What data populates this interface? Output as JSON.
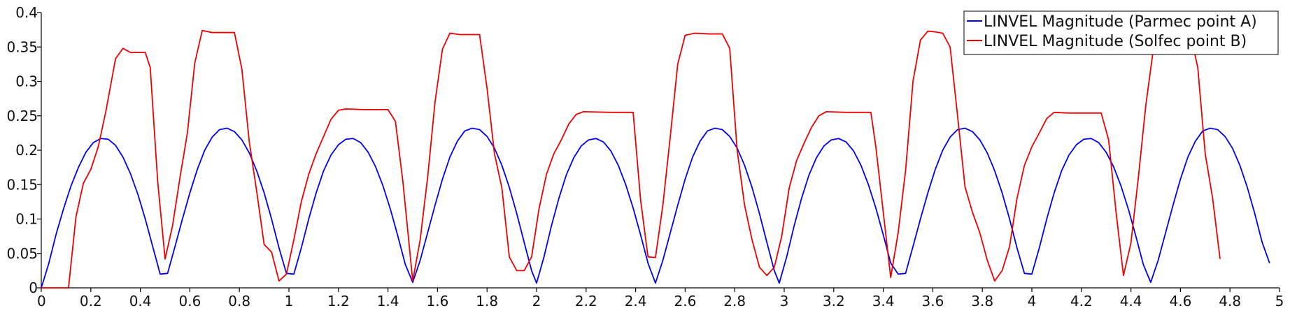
{
  "chart_data": {
    "type": "line",
    "xlabel": "",
    "ylabel": "",
    "xlim": [
      0,
      5
    ],
    "ylim": [
      0,
      0.4
    ],
    "xticks": [
      "0",
      "0.2",
      "0.4",
      "0.6",
      "0.8",
      "1",
      "1.2",
      "1.4",
      "1.6",
      "1.8",
      "2",
      "2.2",
      "2.4",
      "2.6",
      "2.8",
      "3",
      "3.2",
      "3.4",
      "3.6",
      "3.8",
      "4",
      "4.2",
      "4.4",
      "4.6",
      "4.8",
      "5"
    ],
    "yticks": [
      "0",
      "0.05",
      "0.1",
      "0.15",
      "0.2",
      "0.25",
      "0.3",
      "0.35",
      "0.4"
    ],
    "grid": false,
    "legend": "top-right",
    "series": [
      {
        "name": "LINVEL Magnitude (Parmec point A)",
        "color": "#0000ee",
        "points": [
          [
            0,
            0
          ],
          [
            0.03,
            0.035
          ],
          [
            0.06,
            0.078
          ],
          [
            0.09,
            0.115
          ],
          [
            0.12,
            0.148
          ],
          [
            0.15,
            0.175
          ],
          [
            0.18,
            0.197
          ],
          [
            0.21,
            0.211
          ],
          [
            0.24,
            0.217
          ],
          [
            0.27,
            0.216
          ],
          [
            0.3,
            0.207
          ],
          [
            0.33,
            0.19
          ],
          [
            0.36,
            0.166
          ],
          [
            0.39,
            0.136
          ],
          [
            0.42,
            0.1
          ],
          [
            0.45,
            0.06
          ],
          [
            0.48,
            0.02
          ],
          [
            0.51,
            0.021
          ],
          [
            0.54,
            0.06
          ],
          [
            0.57,
            0.1
          ],
          [
            0.6,
            0.138
          ],
          [
            0.63,
            0.172
          ],
          [
            0.66,
            0.2
          ],
          [
            0.69,
            0.219
          ],
          [
            0.72,
            0.23
          ],
          [
            0.75,
            0.232
          ],
          [
            0.78,
            0.227
          ],
          [
            0.81,
            0.215
          ],
          [
            0.84,
            0.196
          ],
          [
            0.87,
            0.17
          ],
          [
            0.9,
            0.138
          ],
          [
            0.93,
            0.1
          ],
          [
            0.96,
            0.058
          ],
          [
            0.99,
            0.021
          ],
          [
            1.02,
            0.02
          ],
          [
            1.05,
            0.058
          ],
          [
            1.08,
            0.1
          ],
          [
            1.11,
            0.138
          ],
          [
            1.14,
            0.17
          ],
          [
            1.17,
            0.193
          ],
          [
            1.2,
            0.208
          ],
          [
            1.23,
            0.216
          ],
          [
            1.26,
            0.217
          ],
          [
            1.29,
            0.211
          ],
          [
            1.32,
            0.197
          ],
          [
            1.35,
            0.176
          ],
          [
            1.38,
            0.148
          ],
          [
            1.41,
            0.114
          ],
          [
            1.44,
            0.075
          ],
          [
            1.47,
            0.034
          ],
          [
            1.5,
            0.008
          ],
          [
            1.53,
            0.04
          ],
          [
            1.56,
            0.08
          ],
          [
            1.59,
            0.12
          ],
          [
            1.62,
            0.158
          ],
          [
            1.65,
            0.19
          ],
          [
            1.68,
            0.213
          ],
          [
            1.71,
            0.228
          ],
          [
            1.74,
            0.232
          ],
          [
            1.77,
            0.23
          ],
          [
            1.8,
            0.22
          ],
          [
            1.83,
            0.203
          ],
          [
            1.86,
            0.178
          ],
          [
            1.89,
            0.146
          ],
          [
            1.92,
            0.108
          ],
          [
            1.95,
            0.066
          ],
          [
            1.98,
            0.025
          ],
          [
            2.0,
            0.007
          ],
          [
            2.03,
            0.045
          ],
          [
            2.06,
            0.09
          ],
          [
            2.09,
            0.13
          ],
          [
            2.12,
            0.164
          ],
          [
            2.15,
            0.189
          ],
          [
            2.18,
            0.206
          ],
          [
            2.21,
            0.215
          ],
          [
            2.24,
            0.217
          ],
          [
            2.27,
            0.212
          ],
          [
            2.3,
            0.199
          ],
          [
            2.33,
            0.178
          ],
          [
            2.36,
            0.15
          ],
          [
            2.39,
            0.116
          ],
          [
            2.42,
            0.077
          ],
          [
            2.45,
            0.036
          ],
          [
            2.48,
            0.007
          ],
          [
            2.51,
            0.04
          ],
          [
            2.54,
            0.08
          ],
          [
            2.57,
            0.12
          ],
          [
            2.6,
            0.158
          ],
          [
            2.63,
            0.19
          ],
          [
            2.66,
            0.213
          ],
          [
            2.69,
            0.228
          ],
          [
            2.72,
            0.232
          ],
          [
            2.75,
            0.23
          ],
          [
            2.78,
            0.22
          ],
          [
            2.81,
            0.203
          ],
          [
            2.84,
            0.178
          ],
          [
            2.87,
            0.146
          ],
          [
            2.9,
            0.108
          ],
          [
            2.93,
            0.066
          ],
          [
            2.96,
            0.025
          ],
          [
            2.98,
            0.007
          ],
          [
            3.01,
            0.045
          ],
          [
            3.04,
            0.09
          ],
          [
            3.07,
            0.13
          ],
          [
            3.1,
            0.164
          ],
          [
            3.13,
            0.189
          ],
          [
            3.16,
            0.206
          ],
          [
            3.19,
            0.215
          ],
          [
            3.22,
            0.217
          ],
          [
            3.25,
            0.212
          ],
          [
            3.28,
            0.199
          ],
          [
            3.31,
            0.178
          ],
          [
            3.34,
            0.15
          ],
          [
            3.37,
            0.116
          ],
          [
            3.4,
            0.077
          ],
          [
            3.43,
            0.036
          ],
          [
            3.46,
            0.02
          ],
          [
            3.49,
            0.021
          ],
          [
            3.52,
            0.06
          ],
          [
            3.55,
            0.1
          ],
          [
            3.58,
            0.138
          ],
          [
            3.61,
            0.172
          ],
          [
            3.64,
            0.2
          ],
          [
            3.67,
            0.219
          ],
          [
            3.7,
            0.23
          ],
          [
            3.73,
            0.232
          ],
          [
            3.76,
            0.227
          ],
          [
            3.79,
            0.215
          ],
          [
            3.82,
            0.196
          ],
          [
            3.85,
            0.17
          ],
          [
            3.88,
            0.138
          ],
          [
            3.91,
            0.1
          ],
          [
            3.94,
            0.058
          ],
          [
            3.97,
            0.021
          ],
          [
            4.0,
            0.02
          ],
          [
            4.03,
            0.058
          ],
          [
            4.06,
            0.1
          ],
          [
            4.09,
            0.138
          ],
          [
            4.12,
            0.17
          ],
          [
            4.15,
            0.193
          ],
          [
            4.18,
            0.208
          ],
          [
            4.21,
            0.216
          ],
          [
            4.24,
            0.217
          ],
          [
            4.27,
            0.211
          ],
          [
            4.3,
            0.197
          ],
          [
            4.33,
            0.176
          ],
          [
            4.36,
            0.148
          ],
          [
            4.39,
            0.114
          ],
          [
            4.42,
            0.075
          ],
          [
            4.45,
            0.034
          ],
          [
            4.48,
            0.008
          ],
          [
            4.51,
            0.04
          ],
          [
            4.54,
            0.08
          ],
          [
            4.57,
            0.12
          ],
          [
            4.6,
            0.158
          ],
          [
            4.63,
            0.19
          ],
          [
            4.66,
            0.213
          ],
          [
            4.69,
            0.228
          ],
          [
            4.72,
            0.232
          ],
          [
            4.75,
            0.23
          ],
          [
            4.78,
            0.22
          ],
          [
            4.81,
            0.203
          ],
          [
            4.84,
            0.178
          ],
          [
            4.87,
            0.146
          ],
          [
            4.9,
            0.108
          ],
          [
            4.93,
            0.066
          ],
          [
            4.96,
            0.036
          ]
        ]
      },
      {
        "name": "LINVEL Magnitude (Solfec point B)",
        "color": "#ee0000",
        "points": [
          [
            0,
            0
          ],
          [
            0.11,
            0.0
          ],
          [
            0.14,
            0.103
          ],
          [
            0.17,
            0.152
          ],
          [
            0.2,
            0.172
          ],
          [
            0.23,
            0.205
          ],
          [
            0.26,
            0.255
          ],
          [
            0.3,
            0.333
          ],
          [
            0.33,
            0.348
          ],
          [
            0.36,
            0.342
          ],
          [
            0.4,
            0.342
          ],
          [
            0.42,
            0.342
          ],
          [
            0.44,
            0.32
          ],
          [
            0.47,
            0.155
          ],
          [
            0.5,
            0.042
          ],
          [
            0.53,
            0.09
          ],
          [
            0.56,
            0.16
          ],
          [
            0.59,
            0.225
          ],
          [
            0.62,
            0.327
          ],
          [
            0.65,
            0.374
          ],
          [
            0.69,
            0.371
          ],
          [
            0.73,
            0.371
          ],
          [
            0.78,
            0.371
          ],
          [
            0.81,
            0.318
          ],
          [
            0.84,
            0.212
          ],
          [
            0.87,
            0.14
          ],
          [
            0.9,
            0.063
          ],
          [
            0.93,
            0.052
          ],
          [
            0.96,
            0.01
          ],
          [
            0.99,
            0.02
          ],
          [
            1.02,
            0.07
          ],
          [
            1.05,
            0.125
          ],
          [
            1.08,
            0.165
          ],
          [
            1.11,
            0.195
          ],
          [
            1.14,
            0.22
          ],
          [
            1.17,
            0.245
          ],
          [
            1.2,
            0.258
          ],
          [
            1.23,
            0.26
          ],
          [
            1.3,
            0.259
          ],
          [
            1.35,
            0.259
          ],
          [
            1.4,
            0.259
          ],
          [
            1.43,
            0.242
          ],
          [
            1.46,
            0.155
          ],
          [
            1.5,
            0.01
          ],
          [
            1.53,
            0.07
          ],
          [
            1.56,
            0.16
          ],
          [
            1.59,
            0.27
          ],
          [
            1.62,
            0.347
          ],
          [
            1.65,
            0.37
          ],
          [
            1.69,
            0.368
          ],
          [
            1.74,
            0.368
          ],
          [
            1.77,
            0.368
          ],
          [
            1.8,
            0.29
          ],
          [
            1.83,
            0.195
          ],
          [
            1.86,
            0.145
          ],
          [
            1.89,
            0.045
          ],
          [
            1.92,
            0.025
          ],
          [
            1.95,
            0.025
          ],
          [
            1.98,
            0.045
          ],
          [
            2.01,
            0.115
          ],
          [
            2.04,
            0.165
          ],
          [
            2.07,
            0.195
          ],
          [
            2.1,
            0.215
          ],
          [
            2.13,
            0.238
          ],
          [
            2.16,
            0.252
          ],
          [
            2.19,
            0.256
          ],
          [
            2.3,
            0.255
          ],
          [
            2.36,
            0.255
          ],
          [
            2.39,
            0.255
          ],
          [
            2.42,
            0.128
          ],
          [
            2.45,
            0.045
          ],
          [
            2.48,
            0.044
          ],
          [
            2.51,
            0.12
          ],
          [
            2.54,
            0.22
          ],
          [
            2.57,
            0.325
          ],
          [
            2.6,
            0.367
          ],
          [
            2.64,
            0.37
          ],
          [
            2.7,
            0.369
          ],
          [
            2.75,
            0.369
          ],
          [
            2.78,
            0.348
          ],
          [
            2.81,
            0.2
          ],
          [
            2.84,
            0.12
          ],
          [
            2.87,
            0.07
          ],
          [
            2.9,
            0.03
          ],
          [
            2.93,
            0.018
          ],
          [
            2.96,
            0.03
          ],
          [
            2.99,
            0.075
          ],
          [
            3.02,
            0.145
          ],
          [
            3.05,
            0.185
          ],
          [
            3.08,
            0.21
          ],
          [
            3.11,
            0.233
          ],
          [
            3.14,
            0.25
          ],
          [
            3.17,
            0.256
          ],
          [
            3.25,
            0.255
          ],
          [
            3.3,
            0.255
          ],
          [
            3.35,
            0.255
          ],
          [
            3.37,
            0.205
          ],
          [
            3.4,
            0.11
          ],
          [
            3.43,
            0.015
          ],
          [
            3.46,
            0.08
          ],
          [
            3.49,
            0.17
          ],
          [
            3.52,
            0.3
          ],
          [
            3.55,
            0.36
          ],
          [
            3.58,
            0.373
          ],
          [
            3.61,
            0.372
          ],
          [
            3.64,
            0.37
          ],
          [
            3.67,
            0.35
          ],
          [
            3.7,
            0.25
          ],
          [
            3.73,
            0.147
          ],
          [
            3.76,
            0.11
          ],
          [
            3.79,
            0.08
          ],
          [
            3.82,
            0.04
          ],
          [
            3.85,
            0.01
          ],
          [
            3.88,
            0.025
          ],
          [
            3.91,
            0.06
          ],
          [
            3.94,
            0.13
          ],
          [
            3.97,
            0.178
          ],
          [
            4.0,
            0.205
          ],
          [
            4.03,
            0.225
          ],
          [
            4.06,
            0.246
          ],
          [
            4.09,
            0.255
          ],
          [
            4.15,
            0.254
          ],
          [
            4.22,
            0.254
          ],
          [
            4.28,
            0.254
          ],
          [
            4.31,
            0.215
          ],
          [
            4.34,
            0.11
          ],
          [
            4.37,
            0.018
          ],
          [
            4.4,
            0.065
          ],
          [
            4.43,
            0.16
          ],
          [
            4.46,
            0.265
          ],
          [
            4.49,
            0.345
          ],
          [
            4.52,
            0.37
          ],
          [
            4.56,
            0.372
          ],
          [
            4.62,
            0.371
          ],
          [
            4.64,
            0.37
          ],
          [
            4.67,
            0.32
          ],
          [
            4.7,
            0.195
          ],
          [
            4.73,
            0.13
          ],
          [
            4.76,
            0.042
          ]
        ]
      }
    ]
  }
}
